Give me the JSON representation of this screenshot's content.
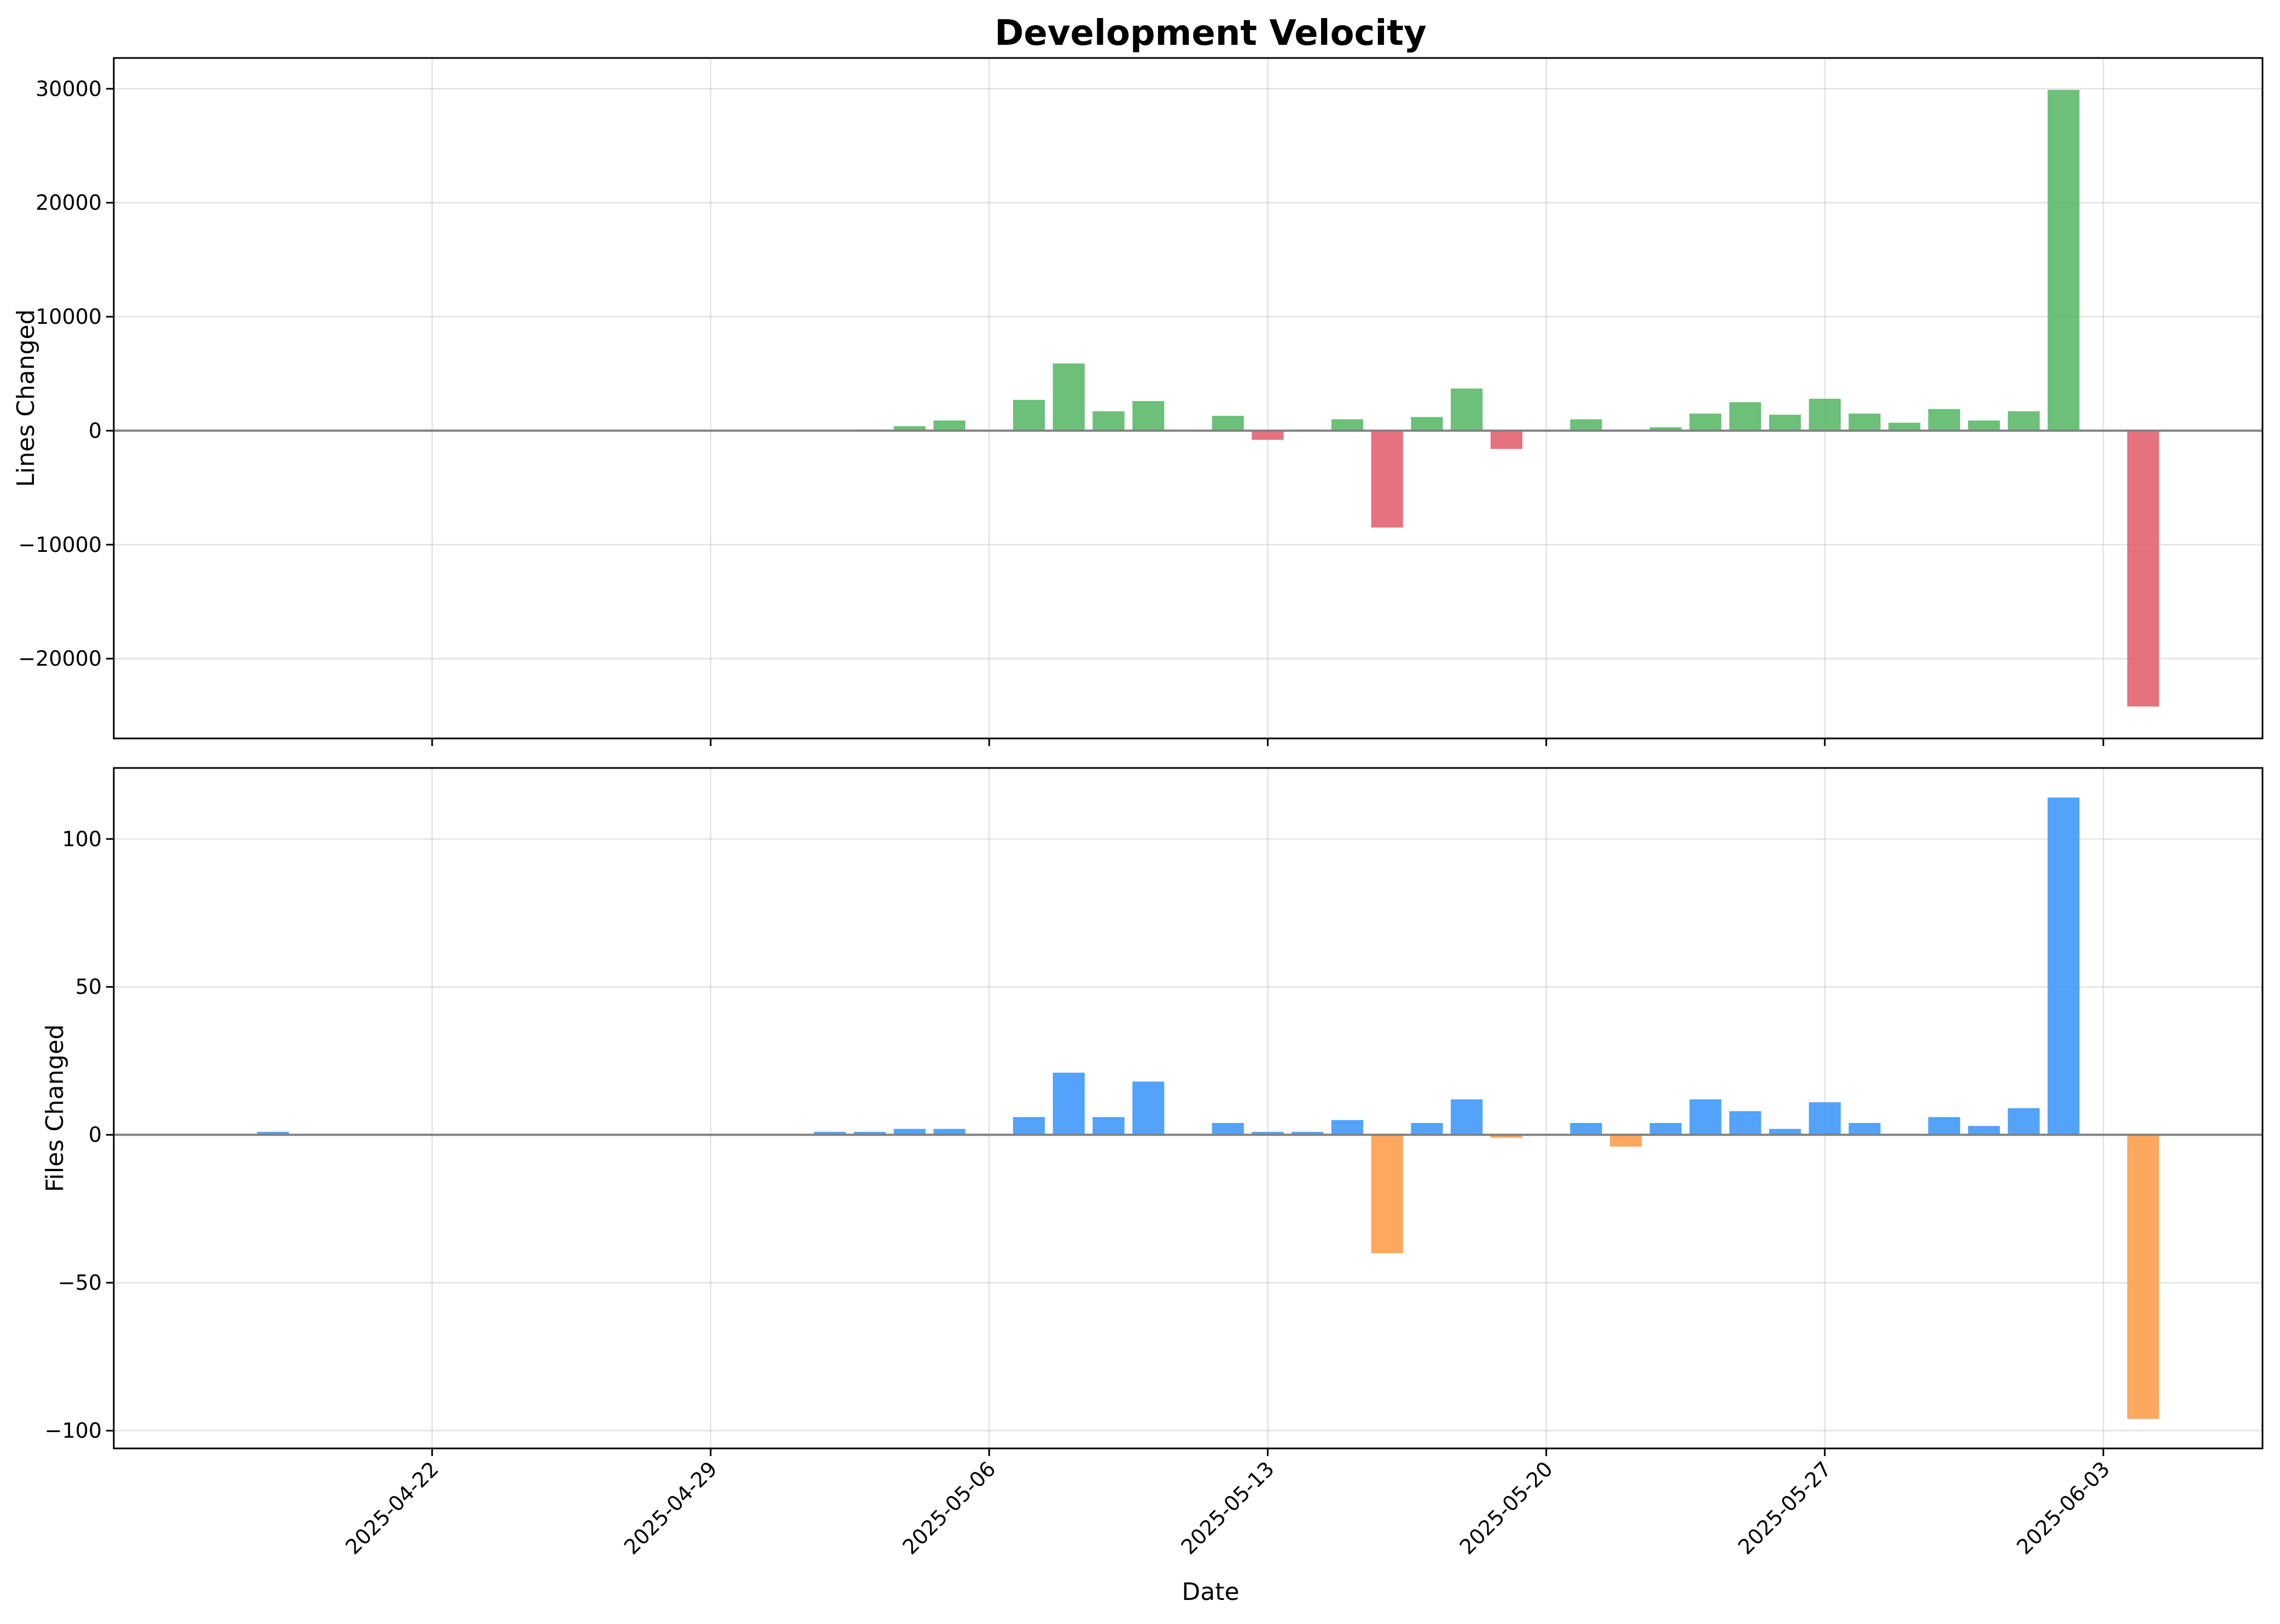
{
  "chart_data": {
    "type": "bar",
    "title": "Development Velocity",
    "xlabel": "Date",
    "x_ticks": [
      "2025-04-22",
      "2025-04-29",
      "2025-05-06",
      "2025-05-13",
      "2025-05-20",
      "2025-05-27",
      "2025-06-03"
    ],
    "xlim": [
      "2025-04-14",
      "2025-06-07"
    ],
    "grid": true,
    "colors": {
      "lines_positive": "#5cb96a",
      "lines_negative": "#e36371",
      "files_positive": "#3f99f8",
      "files_negative": "#fe9d4d",
      "zero_line": "#808080"
    },
    "panels": [
      {
        "ylabel": "Lines Changed",
        "ylim": [
          -27000,
          32700
        ],
        "y_ticks": [
          -20000,
          -10000,
          0,
          10000,
          20000,
          30000
        ],
        "tick_labels": [
          "−20000",
          "−10000",
          "0",
          "10000",
          "20000",
          "30000"
        ],
        "bars": [
          {
            "date": "2025-04-18",
            "value": 30
          },
          {
            "date": "2025-05-03",
            "value": 100
          },
          {
            "date": "2025-05-04",
            "value": 400
          },
          {
            "date": "2025-05-05",
            "value": 900
          },
          {
            "date": "2025-05-07",
            "value": 2700
          },
          {
            "date": "2025-05-08",
            "value": 5900
          },
          {
            "date": "2025-05-09",
            "value": 1700
          },
          {
            "date": "2025-05-10",
            "value": 2600
          },
          {
            "date": "2025-05-12",
            "value": 1300
          },
          {
            "date": "2025-05-13",
            "value": -800
          },
          {
            "date": "2025-05-14",
            "value": 100
          },
          {
            "date": "2025-05-15",
            "value": 1000
          },
          {
            "date": "2025-05-16",
            "value": -8500
          },
          {
            "date": "2025-05-17",
            "value": 1200
          },
          {
            "date": "2025-05-18",
            "value": 3700
          },
          {
            "date": "2025-05-19",
            "value": -1600
          },
          {
            "date": "2025-05-21",
            "value": 1000
          },
          {
            "date": "2025-05-22",
            "value": 100
          },
          {
            "date": "2025-05-23",
            "value": 300
          },
          {
            "date": "2025-05-24",
            "value": 1500
          },
          {
            "date": "2025-05-25",
            "value": 2500
          },
          {
            "date": "2025-05-26",
            "value": 1400
          },
          {
            "date": "2025-05-27",
            "value": 2800
          },
          {
            "date": "2025-05-28",
            "value": 1500
          },
          {
            "date": "2025-05-29",
            "value": 700
          },
          {
            "date": "2025-05-30",
            "value": 1900
          },
          {
            "date": "2025-05-31",
            "value": 900
          },
          {
            "date": "2025-06-01",
            "value": 1700
          },
          {
            "date": "2025-06-02",
            "value": 29900
          },
          {
            "date": "2025-06-04",
            "value": -24200
          }
        ]
      },
      {
        "ylabel": "Files Changed",
        "ylim": [
          -106,
          124
        ],
        "y_ticks": [
          -100,
          -50,
          0,
          50,
          100
        ],
        "tick_labels": [
          "−100",
          "−50",
          "0",
          "50",
          "100"
        ],
        "bars": [
          {
            "date": "2025-04-18",
            "value": 1
          },
          {
            "date": "2025-05-02",
            "value": 1
          },
          {
            "date": "2025-05-03",
            "value": 1
          },
          {
            "date": "2025-05-04",
            "value": 2
          },
          {
            "date": "2025-05-05",
            "value": 2
          },
          {
            "date": "2025-05-07",
            "value": 6
          },
          {
            "date": "2025-05-08",
            "value": 21
          },
          {
            "date": "2025-05-09",
            "value": 6
          },
          {
            "date": "2025-05-10",
            "value": 18
          },
          {
            "date": "2025-05-12",
            "value": 4
          },
          {
            "date": "2025-05-13",
            "value": 1
          },
          {
            "date": "2025-05-14",
            "value": 1
          },
          {
            "date": "2025-05-15",
            "value": 5
          },
          {
            "date": "2025-05-16",
            "value": -40
          },
          {
            "date": "2025-05-17",
            "value": 4
          },
          {
            "date": "2025-05-18",
            "value": 12
          },
          {
            "date": "2025-05-19",
            "value": -1
          },
          {
            "date": "2025-05-21",
            "value": 4
          },
          {
            "date": "2025-05-22",
            "value": -4
          },
          {
            "date": "2025-05-23",
            "value": 4
          },
          {
            "date": "2025-05-24",
            "value": 12
          },
          {
            "date": "2025-05-25",
            "value": 8
          },
          {
            "date": "2025-05-26",
            "value": 2
          },
          {
            "date": "2025-05-27",
            "value": 11
          },
          {
            "date": "2025-05-28",
            "value": 4
          },
          {
            "date": "2025-05-30",
            "value": 6
          },
          {
            "date": "2025-05-31",
            "value": 3
          },
          {
            "date": "2025-06-01",
            "value": 9
          },
          {
            "date": "2025-06-02",
            "value": 114
          },
          {
            "date": "2025-06-04",
            "value": -96
          }
        ]
      }
    ]
  }
}
